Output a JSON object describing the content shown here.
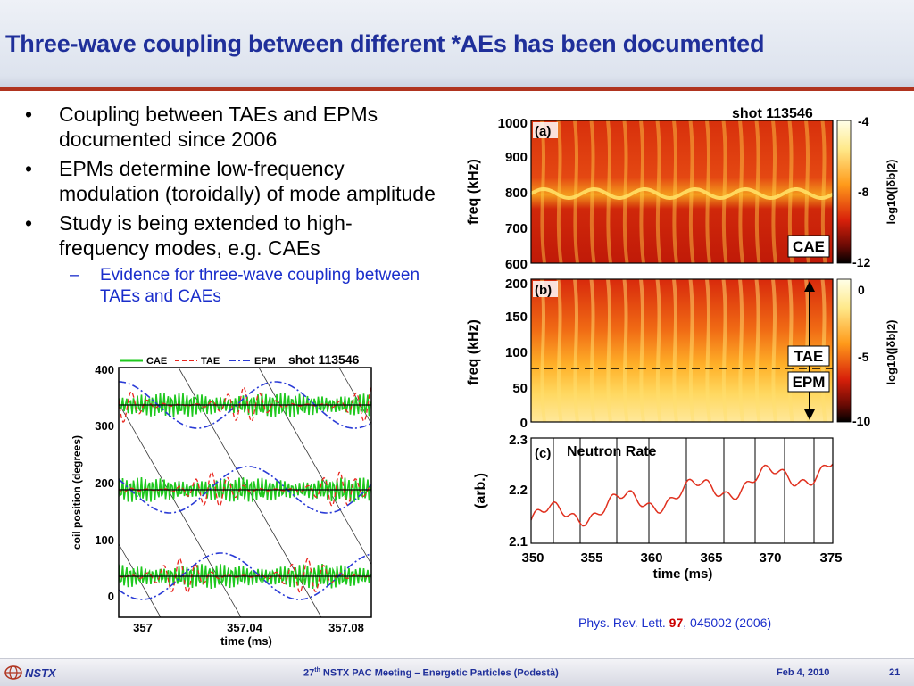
{
  "header": {
    "title": "Three-wave coupling between different *AEs has been documented"
  },
  "bullets": [
    "Coupling between TAEs and EPMs documented since 2006",
    "EPMs determine low-frequency modulation (toroidally) of mode amplitude",
    "Study is being extended to high-frequency modes, e.g. CAEs"
  ],
  "bullet_marker": "•",
  "sub_bullet_marker": "–",
  "sub_bullets": [
    "Evidence for three-wave coupling between TAEs and CAEs"
  ],
  "left_figure": {
    "legend": [
      "CAE",
      "TAE",
      "EPM"
    ],
    "shot": "shot 113546",
    "ylabel": "coil position (degrees)",
    "yticks": [
      "400",
      "300",
      "200",
      "100",
      "0"
    ],
    "xticks": [
      "357",
      "357.04",
      "357.08"
    ],
    "xlabel": "time (ms)"
  },
  "right_figure": {
    "shot": "shot 113546",
    "panel_a": {
      "label": "(a)",
      "ylabel": "freq (kHz)",
      "yticks": [
        "1000",
        "900",
        "800",
        "700",
        "600"
      ],
      "cbar_label": "log10(|δb|2)",
      "cbar_ticks": [
        "-4",
        "-8",
        "-12"
      ],
      "tag": "CAE"
    },
    "panel_b": {
      "label": "(b)",
      "ylabel": "freq (kHz)",
      "yticks": [
        "200",
        "150",
        "100",
        "50",
        "0"
      ],
      "cbar_label": "log10(|δb|2)",
      "cbar_ticks": [
        "0",
        "-5",
        "-10"
      ],
      "tags": [
        "TAE",
        "EPM"
      ]
    },
    "panel_c": {
      "label": "(c)",
      "title": "Neutron Rate",
      "ylabel": "(arb.)",
      "yticks": [
        "2.3",
        "2.2",
        "2.1"
      ],
      "xticks": [
        "350",
        "355",
        "360",
        "365",
        "370",
        "375"
      ],
      "xlabel": "time (ms)"
    }
  },
  "citation": {
    "journal": "Phys. Rev. Lett. ",
    "volume": "97",
    "rest": ", 045002 (2006)"
  },
  "footer": {
    "logo_text": "NSTX",
    "meeting_ordinal": "27",
    "meeting_suffix": "th",
    "meeting_rest": " NSTX PAC Meeting – Energetic Particles (Podestà)",
    "date": "Feb 4, 2010",
    "page": "21"
  },
  "colors": {
    "title": "#1f2f9a",
    "accent": "#b0341f",
    "cae": "#1ec81e",
    "tae": "#e8261e",
    "epm": "#2a3bd6"
  }
}
